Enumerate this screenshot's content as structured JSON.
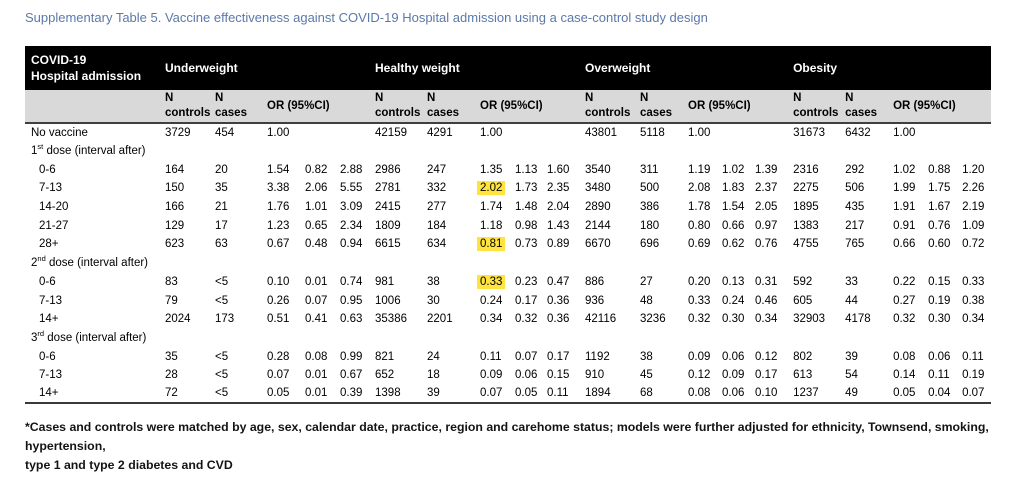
{
  "title": "Supplementary Table 5. Vaccine effectiveness against COVID-19 Hospital admission using a case-control study design",
  "highlight_color": "#ffe33e",
  "table": {
    "corner": {
      "line1": "COVID-19",
      "line2": "Hospital admission"
    },
    "groups": [
      "Underweight",
      "Healthy weight",
      "Overweight",
      "Obesity"
    ],
    "subheader": {
      "n": "N",
      "controls": "controls",
      "cases": "cases",
      "or": "OR (95%CI)"
    },
    "cell_kinds": [
      "n-controls",
      "n-cases",
      "or",
      "ci-low",
      "ci-high"
    ],
    "rows": [
      {
        "label": {
          "pre": "No vaccine",
          "sup": "",
          "post": ""
        },
        "indent": false,
        "cells": [
          [
            "3729",
            "454",
            "1.00",
            "",
            ""
          ],
          [
            "42159",
            "4291",
            "1.00",
            "",
            ""
          ],
          [
            "43801",
            "5118",
            "1.00",
            "",
            ""
          ],
          [
            "31673",
            "6432",
            "1.00",
            "",
            ""
          ]
        ]
      },
      {
        "label": {
          "pre": "1",
          "sup": "st",
          "post": " dose (interval after)"
        },
        "indent": false,
        "section": true
      },
      {
        "label": {
          "pre": "0-6",
          "sup": "",
          "post": ""
        },
        "indent": true,
        "cells": [
          [
            "164",
            "20",
            "1.54",
            "0.82",
            "2.88"
          ],
          [
            "2986",
            "247",
            "1.35",
            "1.13",
            "1.60"
          ],
          [
            "3540",
            "311",
            "1.19",
            "1.02",
            "1.39"
          ],
          [
            "2316",
            "292",
            "1.02",
            "0.88",
            "1.20"
          ]
        ]
      },
      {
        "label": {
          "pre": "7-13",
          "sup": "",
          "post": ""
        },
        "indent": true,
        "cells": [
          [
            "150",
            "35",
            "3.38",
            "2.06",
            "5.55"
          ],
          [
            "2781",
            "332",
            "2.02",
            "1.73",
            "2.35"
          ],
          [
            "3480",
            "500",
            "2.08",
            "1.83",
            "2.37"
          ],
          [
            "2275",
            "506",
            "1.99",
            "1.75",
            "2.26"
          ]
        ],
        "hl": [
          [
            1,
            2
          ]
        ]
      },
      {
        "label": {
          "pre": "14-20",
          "sup": "",
          "post": ""
        },
        "indent": true,
        "cells": [
          [
            "166",
            "21",
            "1.76",
            "1.01",
            "3.09"
          ],
          [
            "2415",
            "277",
            "1.74",
            "1.48",
            "2.04"
          ],
          [
            "2890",
            "386",
            "1.78",
            "1.54",
            "2.05"
          ],
          [
            "1895",
            "435",
            "1.91",
            "1.67",
            "2.19"
          ]
        ]
      },
      {
        "label": {
          "pre": "21-27",
          "sup": "",
          "post": ""
        },
        "indent": true,
        "cells": [
          [
            "129",
            "17",
            "1.23",
            "0.65",
            "2.34"
          ],
          [
            "1809",
            "184",
            "1.18",
            "0.98",
            "1.43"
          ],
          [
            "2144",
            "180",
            "0.80",
            "0.66",
            "0.97"
          ],
          [
            "1383",
            "217",
            "0.91",
            "0.76",
            "1.09"
          ]
        ]
      },
      {
        "label": {
          "pre": "28+",
          "sup": "",
          "post": ""
        },
        "indent": true,
        "cells": [
          [
            "623",
            "63",
            "0.67",
            "0.48",
            "0.94"
          ],
          [
            "6615",
            "634",
            "0.81",
            "0.73",
            "0.89"
          ],
          [
            "6670",
            "696",
            "0.69",
            "0.62",
            "0.76"
          ],
          [
            "4755",
            "765",
            "0.66",
            "0.60",
            "0.72"
          ]
        ],
        "hl": [
          [
            1,
            2
          ]
        ]
      },
      {
        "label": {
          "pre": "2",
          "sup": "nd",
          "post": " dose (interval after)"
        },
        "indent": false,
        "section": true
      },
      {
        "label": {
          "pre": "0-6",
          "sup": "",
          "post": ""
        },
        "indent": true,
        "cells": [
          [
            "83",
            "<5",
            "0.10",
            "0.01",
            "0.74"
          ],
          [
            "981",
            "38",
            "0.33",
            "0.23",
            "0.47"
          ],
          [
            "886",
            "27",
            "0.20",
            "0.13",
            "0.31"
          ],
          [
            "592",
            "33",
            "0.22",
            "0.15",
            "0.33"
          ]
        ],
        "hl": [
          [
            1,
            2
          ]
        ]
      },
      {
        "label": {
          "pre": "7-13",
          "sup": "",
          "post": ""
        },
        "indent": true,
        "cells": [
          [
            "79",
            "<5",
            "0.26",
            "0.07",
            "0.95"
          ],
          [
            "1006",
            "30",
            "0.24",
            "0.17",
            "0.36"
          ],
          [
            "936",
            "48",
            "0.33",
            "0.24",
            "0.46"
          ],
          [
            "605",
            "44",
            "0.27",
            "0.19",
            "0.38"
          ]
        ]
      },
      {
        "label": {
          "pre": "14+",
          "sup": "",
          "post": ""
        },
        "indent": true,
        "cells": [
          [
            "2024",
            "173",
            "0.51",
            "0.41",
            "0.63"
          ],
          [
            "35386",
            "2201",
            "0.34",
            "0.32",
            "0.36"
          ],
          [
            "42116",
            "3236",
            "0.32",
            "0.30",
            "0.34"
          ],
          [
            "32903",
            "4178",
            "0.32",
            "0.30",
            "0.34"
          ]
        ]
      },
      {
        "label": {
          "pre": "3",
          "sup": "rd",
          "post": " dose (interval after)"
        },
        "indent": false,
        "section": true
      },
      {
        "label": {
          "pre": "0-6",
          "sup": "",
          "post": ""
        },
        "indent": true,
        "cells": [
          [
            "35",
            "<5",
            "0.28",
            "0.08",
            "0.99"
          ],
          [
            "821",
            "24",
            "0.11",
            "0.07",
            "0.17"
          ],
          [
            "1192",
            "38",
            "0.09",
            "0.06",
            "0.12"
          ],
          [
            "802",
            "39",
            "0.08",
            "0.06",
            "0.11"
          ]
        ]
      },
      {
        "label": {
          "pre": "7-13",
          "sup": "",
          "post": ""
        },
        "indent": true,
        "cells": [
          [
            "28",
            "<5",
            "0.07",
            "0.01",
            "0.67"
          ],
          [
            "652",
            "18",
            "0.09",
            "0.06",
            "0.15"
          ],
          [
            "910",
            "45",
            "0.12",
            "0.09",
            "0.17"
          ],
          [
            "613",
            "54",
            "0.14",
            "0.11",
            "0.19"
          ]
        ]
      },
      {
        "label": {
          "pre": "14+",
          "sup": "",
          "post": ""
        },
        "indent": true,
        "cells": [
          [
            "72",
            "<5",
            "0.05",
            "0.01",
            "0.39"
          ],
          [
            "1398",
            "39",
            "0.07",
            "0.05",
            "0.11"
          ],
          [
            "1894",
            "68",
            "0.08",
            "0.06",
            "0.10"
          ],
          [
            "1237",
            "49",
            "0.05",
            "0.04",
            "0.07"
          ]
        ]
      }
    ]
  },
  "footnote": {
    "line1": "*Cases and controls were matched by age, sex, calendar date, practice, region and carehome status; models were further adjusted for ethnicity, Townsend, smoking, hypertension,",
    "line2": "type 1 and type 2 diabetes and CVD"
  }
}
